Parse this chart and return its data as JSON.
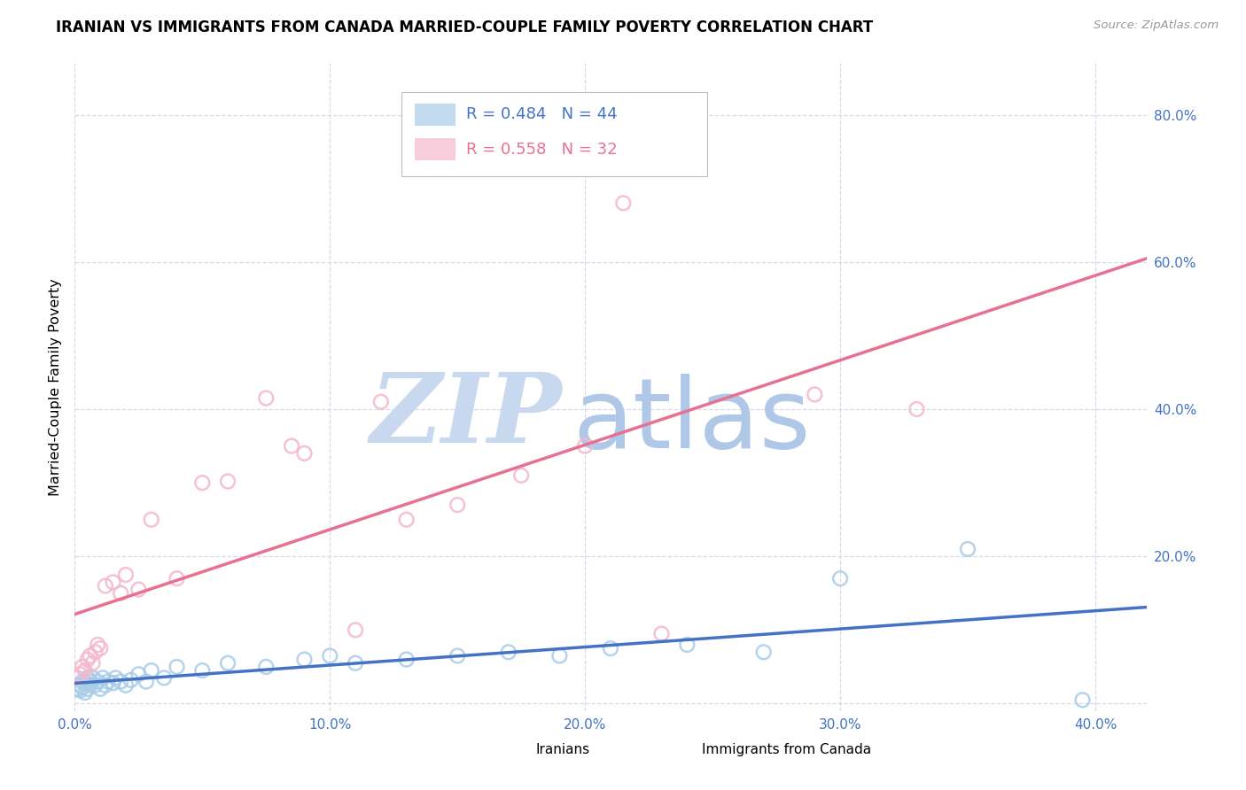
{
  "title": "IRANIAN VS IMMIGRANTS FROM CANADA MARRIED-COUPLE FAMILY POVERTY CORRELATION CHART",
  "source": "Source: ZipAtlas.com",
  "ylabel": "Married-Couple Family Poverty",
  "xlim": [
    0.0,
    0.42
  ],
  "ylim": [
    -0.01,
    0.87
  ],
  "yticks": [
    0.0,
    0.2,
    0.4,
    0.6,
    0.8
  ],
  "xticks": [
    0.0,
    0.1,
    0.2,
    0.3,
    0.4
  ],
  "xtick_labels": [
    "0.0%",
    "10.0%",
    "20.0%",
    "30.0%",
    "40.0%"
  ],
  "ytick_labels": [
    "",
    "20.0%",
    "40.0%",
    "60.0%",
    "80.0%"
  ],
  "iranians_R": 0.484,
  "iranians_N": 44,
  "canada_R": 0.558,
  "canada_N": 32,
  "legend_labels": [
    "Iranians",
    "Immigrants from Canada"
  ],
  "blue_color": "#a8cce8",
  "pink_color": "#f4b8cc",
  "blue_line_color": "#4472c4",
  "pink_line_color": "#e87090",
  "watermark_zip_color": "#c8d8ee",
  "watermark_atlas_color": "#b0c8e8",
  "background_color": "#ffffff",
  "grid_color": "#d8d8e8",
  "tick_color": "#4472c4",
  "iranians_x": [
    0.001,
    0.002,
    0.002,
    0.003,
    0.003,
    0.004,
    0.004,
    0.005,
    0.005,
    0.006,
    0.006,
    0.007,
    0.008,
    0.009,
    0.01,
    0.011,
    0.012,
    0.013,
    0.015,
    0.016,
    0.018,
    0.02,
    0.022,
    0.025,
    0.028,
    0.03,
    0.035,
    0.04,
    0.05,
    0.06,
    0.075,
    0.09,
    0.1,
    0.11,
    0.13,
    0.15,
    0.17,
    0.19,
    0.21,
    0.24,
    0.27,
    0.3,
    0.35,
    0.395
  ],
  "iranians_y": [
    0.02,
    0.025,
    0.018,
    0.03,
    0.022,
    0.028,
    0.015,
    0.035,
    0.02,
    0.025,
    0.03,
    0.035,
    0.025,
    0.03,
    0.02,
    0.035,
    0.025,
    0.03,
    0.028,
    0.035,
    0.03,
    0.025,
    0.032,
    0.04,
    0.03,
    0.045,
    0.035,
    0.05,
    0.045,
    0.055,
    0.05,
    0.06,
    0.065,
    0.055,
    0.06,
    0.065,
    0.07,
    0.065,
    0.075,
    0.08,
    0.07,
    0.17,
    0.21,
    0.005
  ],
  "canada_x": [
    0.001,
    0.002,
    0.003,
    0.004,
    0.005,
    0.006,
    0.007,
    0.008,
    0.009,
    0.01,
    0.012,
    0.015,
    0.018,
    0.02,
    0.025,
    0.03,
    0.04,
    0.05,
    0.06,
    0.075,
    0.085,
    0.09,
    0.11,
    0.12,
    0.13,
    0.15,
    0.175,
    0.2,
    0.215,
    0.23,
    0.29,
    0.33
  ],
  "canada_y": [
    0.035,
    0.04,
    0.05,
    0.045,
    0.06,
    0.065,
    0.055,
    0.07,
    0.08,
    0.075,
    0.16,
    0.165,
    0.15,
    0.175,
    0.155,
    0.25,
    0.17,
    0.3,
    0.302,
    0.415,
    0.35,
    0.34,
    0.1,
    0.41,
    0.25,
    0.27,
    0.31,
    0.35,
    0.68,
    0.095,
    0.42,
    0.4
  ]
}
